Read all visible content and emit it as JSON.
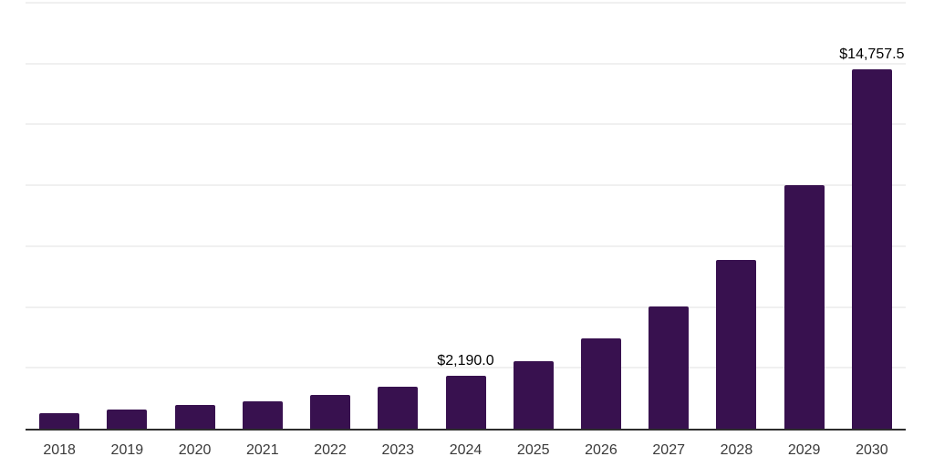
{
  "chart_data": {
    "type": "bar",
    "title": "",
    "xlabel": "",
    "ylabel": "",
    "categories": [
      "2018",
      "2019",
      "2020",
      "2021",
      "2022",
      "2023",
      "2024",
      "2025",
      "2026",
      "2027",
      "2028",
      "2029",
      "2030"
    ],
    "values": [
      650,
      800,
      960,
      1140,
      1390,
      1730,
      2190,
      2790,
      3700,
      5030,
      6940,
      10000,
      14757.5
    ],
    "data_labels": [
      {
        "category": "2024",
        "text": "$2,190.0"
      },
      {
        "category": "2030",
        "text": "$14,757.5"
      }
    ],
    "ylim": [
      0,
      17500
    ],
    "grid_step": 2500,
    "grid": true,
    "y_tick_labels_visible": false,
    "legend": false,
    "colors": {
      "bar": "#38114f",
      "gridline": "#f0f0f0",
      "axis_line": "#2d2d2d",
      "tick_label": "#3a3a3a",
      "data_label": "#000000",
      "background": "#ffffff"
    }
  }
}
